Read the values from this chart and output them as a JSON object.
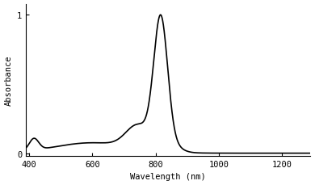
{
  "title": "",
  "xlabel": "Wavelength (nm)",
  "ylabel": "Absorbance",
  "xlim": [
    390,
    1290
  ],
  "ylim": [
    -0.02,
    1.08
  ],
  "xticks": [
    400,
    600,
    800,
    1000,
    1200
  ],
  "yticks": [
    0,
    1
  ],
  "line_color": "#000000",
  "line_width": 1.2,
  "bg_color": "#ffffff",
  "peak_nm": 816,
  "peak_sigma": 22,
  "shoulder_nm": 745,
  "shoulder_sigma": 38,
  "shoulder_amp": 0.18,
  "bump_nm": 415,
  "bump_sigma": 15,
  "bump_amp": 0.09,
  "broad_nm": 600,
  "broad_sigma": 120,
  "broad_amp": 0.08
}
